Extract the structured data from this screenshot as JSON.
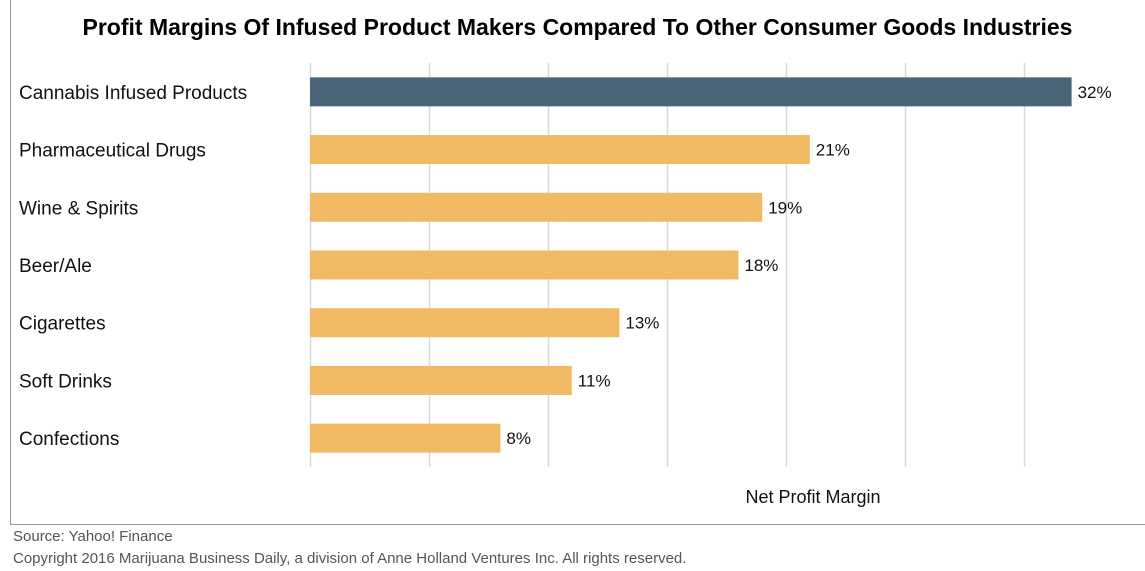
{
  "chart_data": {
    "type": "bar",
    "orientation": "horizontal",
    "title": "Profit Margins Of Infused Product Makers Compared To Other Consumer Goods Industries",
    "xlabel": "Net Profit Margin",
    "categories": [
      "Cannabis Infused Products",
      "Pharmaceutical Drugs",
      "Wine & Spirits",
      "Beer/Ale",
      "Cigarettes",
      "Soft Drinks",
      "Confections"
    ],
    "values": [
      32,
      21,
      19,
      18,
      13,
      11,
      8
    ],
    "value_labels": [
      "32%",
      "21%",
      "19%",
      "18%",
      "13%",
      "11%",
      "8%"
    ],
    "xlim": [
      0,
      35
    ],
    "grid_step": 5,
    "grid": true,
    "colors": {
      "highlight": "#4a6578",
      "default": "#f0b962",
      "grid": "#d9d9d9"
    },
    "highlight_index": 0
  },
  "footer": {
    "source": "Source:  Yahoo! Finance",
    "copyright": "Copyright 2016 Marijuana Business Daily, a division of Anne Holland Ventures Inc. All rights reserved."
  }
}
